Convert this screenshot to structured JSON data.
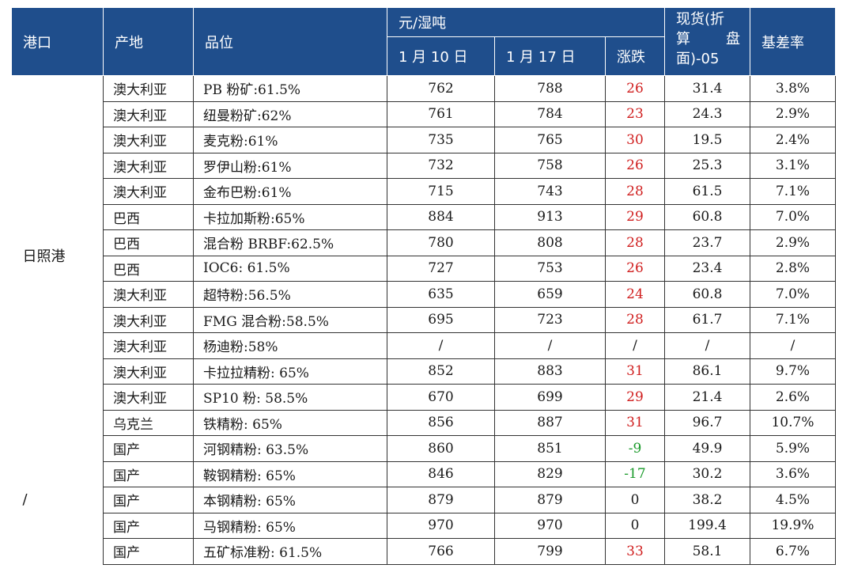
{
  "header": {
    "port": "港口",
    "origin": "产地",
    "grade": "品位",
    "unit": "元/湿吨",
    "date1": "1 月 10 日",
    "date2": "1 月 17 日",
    "change": "涨跌",
    "spot_line1": "现货(折",
    "spot_line2a": "算",
    "spot_line2b": "盘",
    "spot_line3": "面)-05",
    "basis": "基差率"
  },
  "groups": [
    {
      "port": "日照港",
      "rows": [
        {
          "origin": "澳大利亚",
          "grade": "PB 粉矿:61.5%",
          "p1": "762",
          "p2": "788",
          "chg": "26",
          "dir": "up",
          "spot": "31.4",
          "basis": "3.8%"
        },
        {
          "origin": "澳大利亚",
          "grade": "纽曼粉矿:62%",
          "p1": "761",
          "p2": "784",
          "chg": "23",
          "dir": "up",
          "spot": "24.3",
          "basis": "2.9%"
        },
        {
          "origin": "澳大利亚",
          "grade": "麦克粉:61%",
          "p1": "735",
          "p2": "765",
          "chg": "30",
          "dir": "up",
          "spot": "19.5",
          "basis": "2.4%"
        },
        {
          "origin": "澳大利亚",
          "grade": "罗伊山粉:61%",
          "p1": "732",
          "p2": "758",
          "chg": "26",
          "dir": "up",
          "spot": "25.3",
          "basis": "3.1%"
        },
        {
          "origin": "澳大利亚",
          "grade": "金布巴粉:61%",
          "p1": "715",
          "p2": "743",
          "chg": "28",
          "dir": "up",
          "spot": "61.5",
          "basis": "7.1%"
        },
        {
          "origin": "巴西",
          "grade": "卡拉加斯粉:65%",
          "p1": "884",
          "p2": "913",
          "chg": "29",
          "dir": "up",
          "spot": "60.8",
          "basis": "7.0%"
        },
        {
          "origin": "巴西",
          "grade": "混合粉 BRBF:62.5%",
          "p1": "780",
          "p2": "808",
          "chg": "28",
          "dir": "up",
          "spot": "23.7",
          "basis": "2.9%"
        },
        {
          "origin": "巴西",
          "grade": "IOC6: 61.5%",
          "p1": "727",
          "p2": "753",
          "chg": "26",
          "dir": "up",
          "spot": "23.4",
          "basis": "2.8%"
        },
        {
          "origin": "澳大利亚",
          "grade": "超特粉:56.5%",
          "p1": "635",
          "p2": "659",
          "chg": "24",
          "dir": "up",
          "spot": "60.8",
          "basis": "7.0%"
        },
        {
          "origin": "澳大利亚",
          "grade": "FMG 混合粉:58.5%",
          "p1": "695",
          "p2": "723",
          "chg": "28",
          "dir": "up",
          "spot": "61.7",
          "basis": "7.1%"
        },
        {
          "origin": "澳大利亚",
          "grade": "杨迪粉:58%",
          "p1": "/",
          "p2": "/",
          "chg": "/",
          "dir": "none",
          "spot": "/",
          "basis": "/"
        },
        {
          "origin": "澳大利亚",
          "grade": "卡拉拉精粉: 65%",
          "p1": "852",
          "p2": "883",
          "chg": "31",
          "dir": "up",
          "spot": "86.1",
          "basis": "9.7%"
        },
        {
          "origin": "澳大利亚",
          "grade": "SP10 粉: 58.5%",
          "p1": "670",
          "p2": "699",
          "chg": "29",
          "dir": "up",
          "spot": "21.4",
          "basis": "2.6%"
        },
        {
          "origin": "乌克兰",
          "grade": "铁精粉: 65%",
          "p1": "856",
          "p2": "887",
          "chg": "31",
          "dir": "up",
          "spot": "96.7",
          "basis": "10.7%"
        }
      ]
    },
    {
      "port": "/",
      "rows": [
        {
          "origin": "国产",
          "grade": "河钢精粉: 63.5%",
          "p1": "860",
          "p2": "851",
          "chg": "-9",
          "dir": "down",
          "spot": "49.9",
          "basis": "5.9%"
        },
        {
          "origin": "国产",
          "grade": "鞍钢精粉: 65%",
          "p1": "846",
          "p2": "829",
          "chg": "-17",
          "dir": "down",
          "spot": "30.2",
          "basis": "3.6%"
        },
        {
          "origin": "国产",
          "grade": "本钢精粉: 65%",
          "p1": "879",
          "p2": "879",
          "chg": "0",
          "dir": "none",
          "spot": "38.2",
          "basis": "4.5%"
        },
        {
          "origin": "国产",
          "grade": "马钢精粉: 65%",
          "p1": "970",
          "p2": "970",
          "chg": "0",
          "dir": "none",
          "spot": "199.4",
          "basis": "19.9%"
        },
        {
          "origin": "国产",
          "grade": "五矿标准粉: 61.5%",
          "p1": "766",
          "p2": "799",
          "chg": "33",
          "dir": "up",
          "spot": "58.1",
          "basis": "6.7%"
        }
      ]
    }
  ],
  "colors": {
    "header_bg": "#1f4e8c",
    "up": "#d02020",
    "down": "#1a9a2a"
  }
}
